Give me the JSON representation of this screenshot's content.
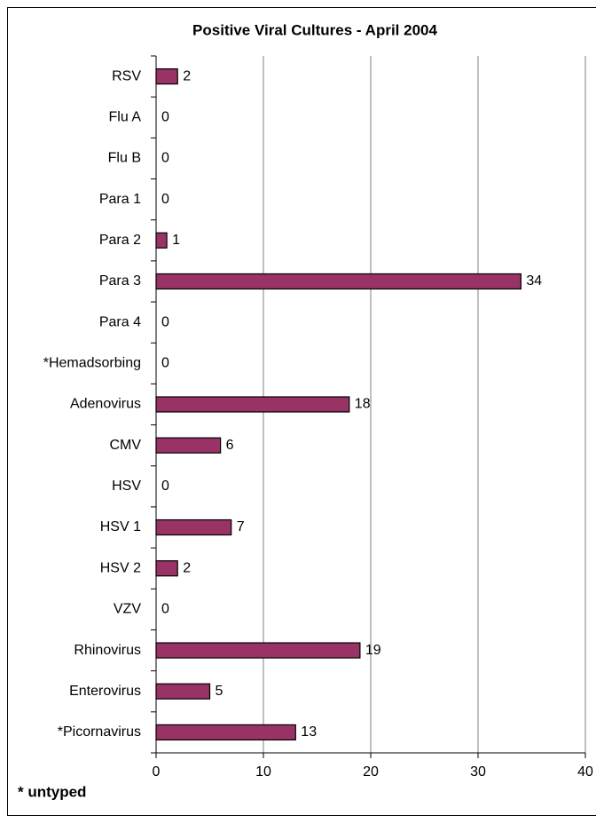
{
  "chart_data": {
    "type": "bar",
    "orientation": "horizontal",
    "title": "Positive Viral Cultures - April 2004",
    "categories": [
      "RSV",
      "Flu A",
      "Flu B",
      "Para 1",
      "Para 2",
      "Para 3",
      "Para 4",
      "*Hemadsorbing",
      "Adenovirus",
      "CMV",
      "HSV",
      "HSV 1",
      "HSV 2",
      "VZV",
      "Rhinovirus",
      "Enterovirus",
      "*Picornavirus"
    ],
    "values": [
      2,
      0,
      0,
      0,
      1,
      34,
      0,
      0,
      18,
      6,
      0,
      7,
      2,
      0,
      19,
      5,
      13
    ],
    "color": "#993366",
    "xlim": [
      0,
      40
    ],
    "xticks": [
      0,
      10,
      20,
      30,
      40
    ],
    "grid": true,
    "annotation": "* untyped"
  }
}
